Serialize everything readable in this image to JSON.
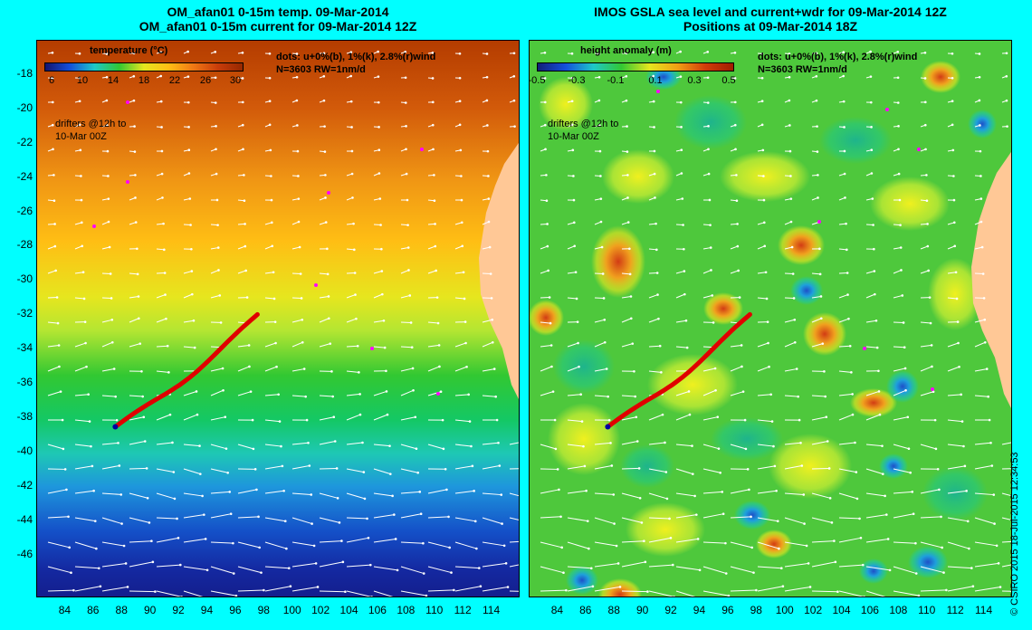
{
  "left_panel": {
    "title_line1": "OM_afan01 0-15m temp. 09-Mar-2014",
    "title_line2": "OM_afan01 0-15m current for 09-Mar-2014 12Z",
    "colorbar_title": "temperature (°C)",
    "colorbar_ticks": [
      "6",
      "10",
      "14",
      "18",
      "22",
      "26",
      "30"
    ],
    "colorbar_range": [
      6,
      32
    ],
    "dots_note": "dots: u+0%(b), 1%(k), 2.8%(r)wind",
    "n_note": "N=3603 RW=1nm/d",
    "drifters_note_1": "drifters @12h to",
    "drifters_note_2": "10-Mar 00Z"
  },
  "right_panel": {
    "title_line1": "IMOS GSLA sea level and current+wdr for 09-Mar-2014 12Z",
    "title_line2": "Positions at 09-Mar-2014 18Z",
    "colorbar_title": "height anomaly (m)",
    "colorbar_ticks": [
      "-0.5",
      "-0.3",
      "-0.1",
      "0.1",
      "0.3",
      "0.5"
    ],
    "colorbar_range": [
      -0.5,
      0.5
    ],
    "dots_note": "dots: u+0%(b), 1%(k), 2.8%(r)wind",
    "n_note": "N=3603 RW=1nm/d",
    "drifters_note_1": "drifters @12h to",
    "drifters_note_2": "10-Mar 00Z"
  },
  "axes": {
    "lon_range": [
      82,
      116
    ],
    "lat_range": [
      -48.5,
      -16
    ],
    "x_ticks": [
      "84",
      "86",
      "88",
      "90",
      "92",
      "94",
      "96",
      "98",
      "100",
      "102",
      "104",
      "106",
      "108",
      "110",
      "112",
      "114"
    ],
    "y_ticks": [
      "-18",
      "-20",
      "-22",
      "-24",
      "-26",
      "-28",
      "-30",
      "-32",
      "-34",
      "-36",
      "-38",
      "-40",
      "-42",
      "-44",
      "-46"
    ]
  },
  "drifter_track": {
    "start_lon": 87.5,
    "start_lat": -38.5,
    "end_lon": 97.5,
    "end_lat": -32,
    "color": "#e00000"
  },
  "colors": {
    "background": "#00ffff",
    "land": "#ffc896",
    "drifter": "#e00000",
    "markers": "#ff00ff"
  },
  "credit": "© CSIRO 2015   18-Jul-2015 12:34:53"
}
